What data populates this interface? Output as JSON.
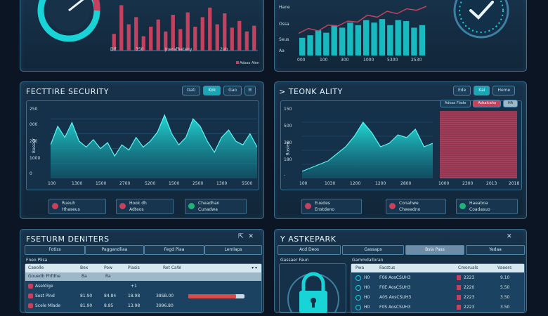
{
  "colors": {
    "accent": "#19d4d6",
    "bar_red": "#c2425f",
    "panel": "#17324a"
  },
  "top_left": {
    "x_labels": [
      "Dlf",
      "350",
      "Jnerafhatany",
      "2ub"
    ],
    "legend": "Adaas Alen",
    "bars": [
      0.35,
      0.95,
      0.55,
      0.7,
      0.3,
      0.5,
      0.65,
      0.4,
      0.75,
      0.45,
      0.8,
      0.5,
      0.7,
      0.9,
      0.55,
      0.78,
      0.48,
      0.62,
      0.4,
      0.52
    ]
  },
  "top_right": {
    "y_labels": [
      "Hane",
      "Ossa",
      "Seus",
      "Aa"
    ],
    "x_labels": [
      "000",
      "100",
      "300",
      "1000",
      "5300",
      "2530"
    ],
    "bars": [
      0.35,
      0.4,
      0.5,
      0.45,
      0.6,
      0.55,
      0.65,
      0.6,
      0.7,
      0.65,
      0.72,
      0.6,
      0.7,
      0.68,
      0.55,
      0.6
    ],
    "trend": [
      0.45,
      0.55,
      0.5,
      0.62,
      0.6,
      0.7,
      0.68,
      0.82,
      0.78,
      0.9,
      0.85,
      0.95,
      0.92,
      1.0
    ]
  },
  "security": {
    "title": "FECTTIRE SECURITY",
    "buttons": [
      "Dati",
      "Kok",
      "Gao"
    ],
    "menu_icon": "hamburger-icon",
    "y_labels": [
      "250",
      "000",
      "200",
      "1000",
      "0"
    ],
    "y_axis_label": "Beeaer",
    "x_labels": [
      "100",
      "1300",
      "1500",
      "2700",
      "5200",
      "1500",
      "2500",
      "1300",
      "5500"
    ],
    "area": [
      0.45,
      0.7,
      0.55,
      0.75,
      0.5,
      0.42,
      0.52,
      0.4,
      0.48,
      0.3,
      0.45,
      0.38,
      0.55,
      0.42,
      0.5,
      0.62,
      0.85,
      0.6,
      0.45,
      0.55,
      0.8,
      0.7,
      0.5,
      0.35,
      0.55,
      0.65,
      0.5,
      0.45,
      0.6,
      0.42
    ],
    "legend": [
      {
        "label": "Rueuh",
        "sub": "Hhaseus",
        "color": "#c2425f"
      },
      {
        "label": "Hook dh",
        "sub": "Adteos",
        "color": "#c2425f"
      },
      {
        "label": "Cheadhan",
        "sub": "Cunadwa",
        "color": "#1fb37a"
      }
    ]
  },
  "quality": {
    "title": "TEONK ALITY",
    "buttons": [
      "Ede",
      "Kai",
      "Heme"
    ],
    "subtabs": [
      "Adsaa Flade",
      "Adsalcaha",
      "HA"
    ],
    "y_labels": [
      "150",
      "500",
      "380",
      "180",
      "-"
    ],
    "y_axis_label": "Bosiee",
    "x_labels": [
      "100",
      "1030",
      "1200",
      "1200",
      "2800",
      "1000",
      "2300",
      "2013",
      "2018"
    ],
    "area": [
      0.1,
      0.15,
      0.2,
      0.25,
      0.35,
      0.45,
      0.6,
      0.8,
      0.65,
      0.45,
      0.5,
      0.62,
      0.58,
      0.7,
      0.45,
      0.5
    ],
    "legend": [
      {
        "label": "Euedes",
        "sub": "Enstdeno",
        "color": "#c2425f"
      },
      {
        "label": "Conahwe",
        "sub": "Cheeadno",
        "color": "#c2425f"
      },
      {
        "label": "Haeaboa",
        "sub": "Coadasuo",
        "color": "#1fb37a"
      }
    ]
  },
  "centers": {
    "title": "FSETURM DENITERS",
    "tabs": [
      "Fotiss",
      "Paggandliaa",
      "Fegd Piaa",
      "Lemlaps"
    ],
    "section": "Fneo Plisa",
    "headers": [
      "Caeolle",
      "Bex",
      "Pow",
      "Piasis",
      "Ret CaW"
    ],
    "group": "Gouedb Fhfdhe",
    "group_vals": [
      "Ba",
      "Ra"
    ],
    "rows": [
      {
        "name": "Aseldige",
        "c1": "",
        "c2": "",
        "c3": "+1",
        "c4": ""
      },
      {
        "name": "Sest Plnd",
        "c1": "81.90",
        "c2": "84.84",
        "c3": "18.98",
        "c4": "38SB.00",
        "bar": 0.85
      },
      {
        "name": "Scele Mlade",
        "c1": "81.90",
        "c2": "8.85",
        "c3": "13.98",
        "c4": "3996.80"
      }
    ]
  },
  "passpark": {
    "title": "Y ASTKEPARK",
    "tabs": [
      "Acd Deos",
      "Gassaps",
      "Bsla Pass",
      "Yedaa"
    ],
    "left_label": "Gassaer Faun",
    "right_label": "Gammdalloran",
    "headers": [
      "Pwa",
      "Facstus",
      "Cmoruals",
      "Vaeers"
    ],
    "rows": [
      {
        "n": "H0",
        "name": "F06 AosCSUH3",
        "val": "2223",
        "v2": "9.10"
      },
      {
        "n": "H0",
        "name": "F0E AosCSUH3",
        "val": "2220",
        "v2": "5.50"
      },
      {
        "n": "H0",
        "name": "A0S AosCSUH3",
        "val": "2223",
        "v2": "3.50"
      },
      {
        "n": "H0",
        "name": "F0S AosCSUH3",
        "val": "2223",
        "v2": "3.50"
      }
    ]
  }
}
